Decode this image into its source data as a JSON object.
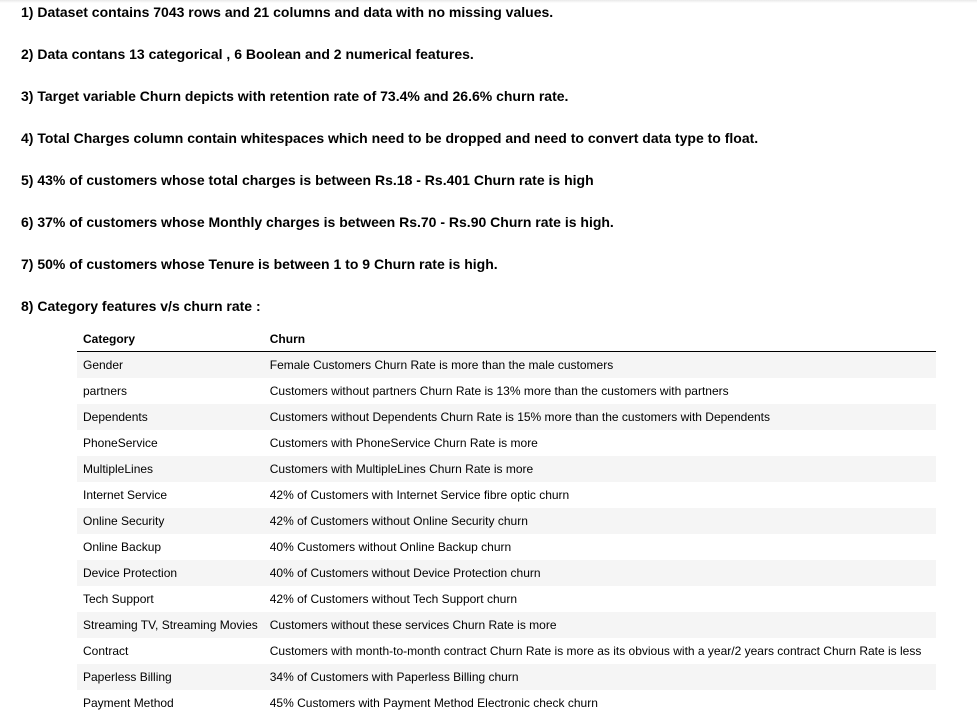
{
  "findings": [
    "1) Dataset contains 7043 rows and 21 columns and data with no missing values.",
    "2) Data contans 13 categorical , 6 Boolean and 2 numerical features.",
    "3) Target variable Churn depicts with retention rate of 73.4% and 26.6% churn rate.",
    "4) Total Charges column contain whitespaces which need to be dropped and need to convert data type to float.",
    "5) 43% of customers whose total charges is between Rs.18 - Rs.401 Churn rate is high",
    "6) 37% of customers whose Monthly charges is between Rs.70 - Rs.90 Churn rate is high.",
    "7) 50% of customers whose Tenure is between 1 to 9 Churn rate is high.",
    "8) Category features v/s churn rate :"
  ],
  "table": {
    "headers": {
      "category": "Category",
      "churn": "Churn"
    },
    "rows": [
      {
        "category": "Gender",
        "churn": "Female Customers Churn Rate is more than the male customers"
      },
      {
        "category": "partners",
        "churn": "Customers without partners Churn Rate is 13% more than the customers with partners"
      },
      {
        "category": "Dependents",
        "churn": "Customers without Dependents Churn Rate is 15% more than the customers with Dependents"
      },
      {
        "category": "PhoneService",
        "churn": "Customers with PhoneService Churn Rate is more"
      },
      {
        "category": "MultipleLines",
        "churn": "Customers with MultipleLines Churn Rate is more"
      },
      {
        "category": "Internet Service",
        "churn": "42% of Customers with Internet Service fibre optic churn"
      },
      {
        "category": "Online Security",
        "churn": "42% of Customers without Online Security churn"
      },
      {
        "category": "Online Backup",
        "churn": "40% Customers without Online Backup churn"
      },
      {
        "category": "Device Protection",
        "churn": "40% of Customers without Device Protection churn"
      },
      {
        "category": "Tech Support",
        "churn": "42% of Customers without Tech Support churn"
      },
      {
        "category": "Streaming TV, Streaming Movies",
        "churn": "Customers without these services Churn Rate is more"
      },
      {
        "category": "Contract",
        "churn": "Customers with month-to-month contract Churn Rate is more as its obvious with a year/2 years contract Churn Rate is less"
      },
      {
        "category": "Paperless Billing",
        "churn": "34% of Customers with Paperless Billing churn"
      },
      {
        "category": "Payment Method",
        "churn": "45% Customers with Payment Method Electronic check churn"
      }
    ]
  }
}
